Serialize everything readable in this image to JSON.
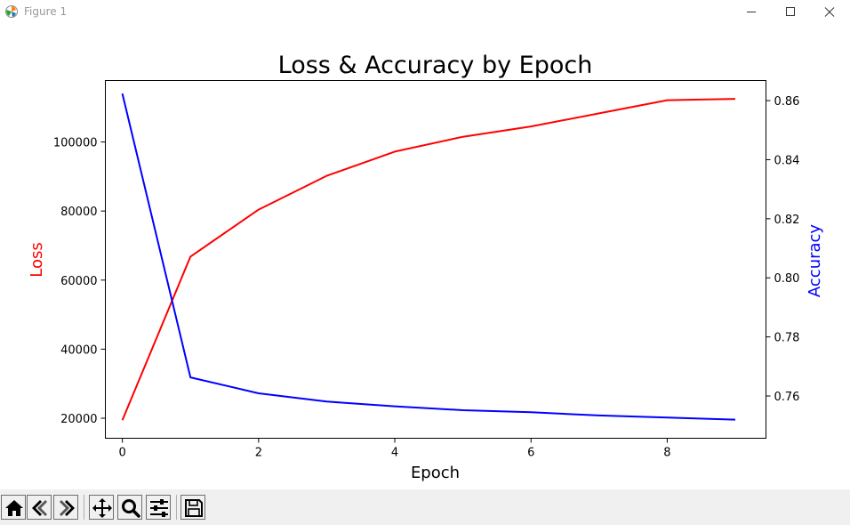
{
  "window": {
    "title": "Figure 1",
    "icons": [
      "matplotlib-logo-icon",
      "minimize-icon",
      "maximize-icon",
      "close-icon"
    ]
  },
  "toolbar": {
    "buttons": [
      "home-icon",
      "back-icon",
      "forward-icon",
      "pan-icon",
      "zoom-icon",
      "configure-subplots-icon",
      "save-icon"
    ]
  },
  "chart_data": {
    "type": "line",
    "title": "Loss & Accuracy by Epoch",
    "xlabel": "Epoch",
    "ylabel": "Loss",
    "ylabel_right": "Accuracy",
    "x": [
      0,
      1,
      2,
      3,
      4,
      5,
      6,
      7,
      8,
      9
    ],
    "xlim": [
      -0.25,
      9.45
    ],
    "ylim": [
      14200,
      117800
    ],
    "ylim_right": [
      0.7457,
      0.8668
    ],
    "xticks": [
      "0",
      "2",
      "4",
      "6",
      "8"
    ],
    "yticks": [
      "20000",
      "40000",
      "60000",
      "80000",
      "100000"
    ],
    "yticks_right": [
      "0.76",
      "0.78",
      "0.80",
      "0.82",
      "0.84",
      "0.86"
    ],
    "grid": false,
    "series": [
      {
        "axis": "left",
        "color": "#ff0000",
        "values": [
          19400,
          66800,
          80400,
          90200,
          97200,
          101500,
          104500,
          108300,
          112100,
          112500
        ]
      },
      {
        "axis": "right",
        "color": "#0000ff",
        "values": [
          0.8624,
          0.7663,
          0.7609,
          0.7581,
          0.7565,
          0.7552,
          0.7545,
          0.7534,
          0.7527,
          0.752
        ]
      }
    ]
  }
}
